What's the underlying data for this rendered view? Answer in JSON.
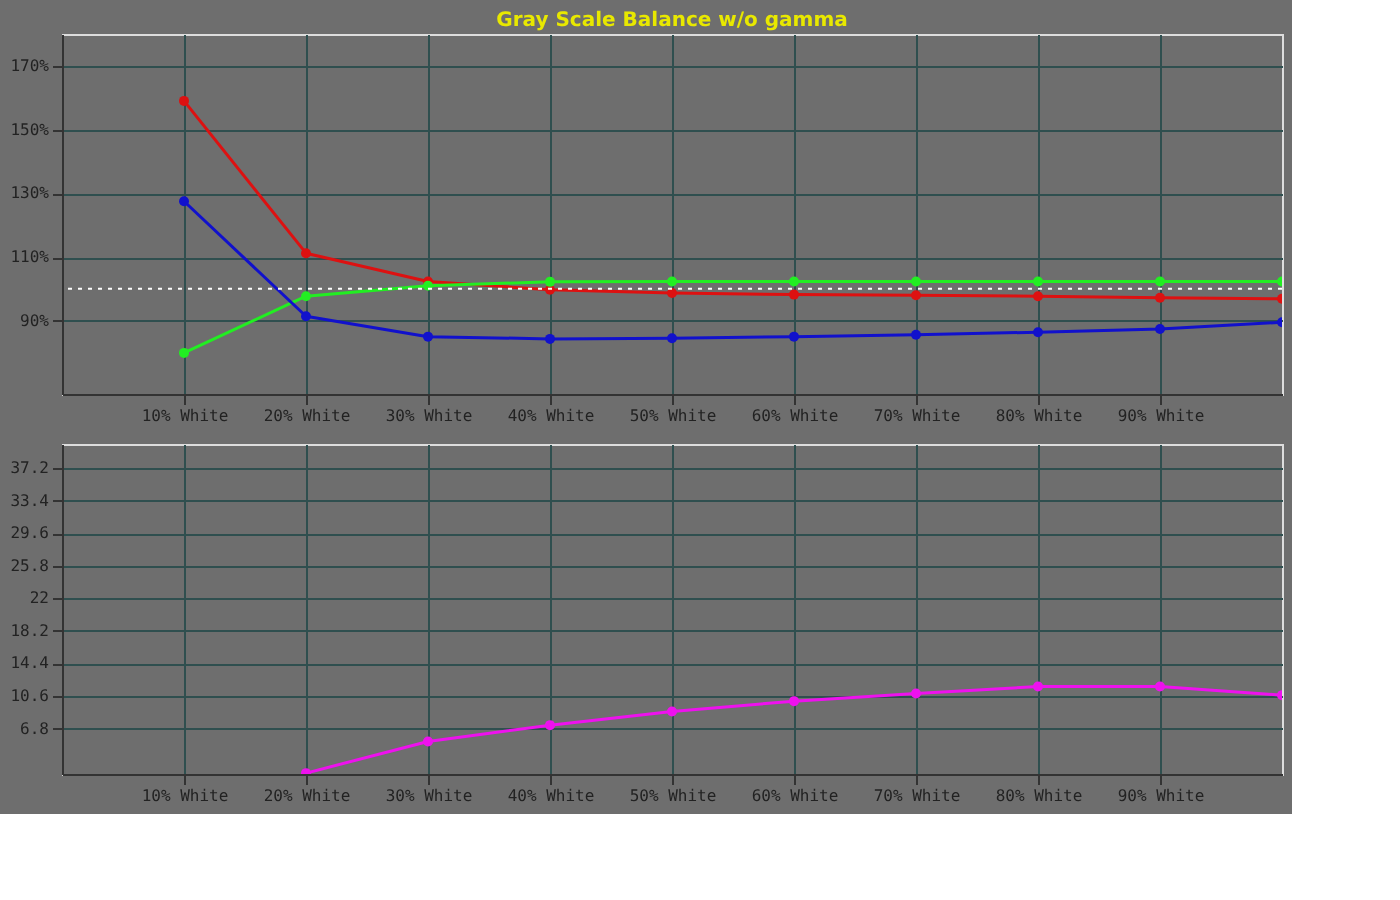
{
  "chart_data": [
    {
      "type": "line",
      "title": "Gray Scale Balance w/o gamma",
      "x": [
        10,
        20,
        30,
        40,
        50,
        60,
        70,
        80,
        90,
        100
      ],
      "series": [
        {
          "color": "#dd1111",
          "values": [
            159.0,
            111.2,
            102.3,
            99.7,
            98.7,
            98.2,
            98.0,
            97.7,
            97.2,
            96.9
          ]
        },
        {
          "color": "#22ee22",
          "values": [
            79.9,
            97.7,
            101.0,
            102.2,
            102.3,
            102.3,
            102.3,
            102.3,
            102.3,
            102.3
          ]
        },
        {
          "color": "#1111cc",
          "values": [
            127.5,
            91.4,
            85.0,
            84.3,
            84.5,
            85.0,
            85.6,
            86.4,
            87.4,
            89.5
          ]
        }
      ],
      "xlim": [
        0,
        100
      ],
      "xticks": [
        {
          "value": 10,
          "label": "10% White"
        },
        {
          "value": 20,
          "label": "20% White"
        },
        {
          "value": 30,
          "label": "30% White"
        },
        {
          "value": 40,
          "label": "40% White"
        },
        {
          "value": 50,
          "label": "50% White"
        },
        {
          "value": 60,
          "label": "60% White"
        },
        {
          "value": 70,
          "label": "70% White"
        },
        {
          "value": 80,
          "label": "80% White"
        },
        {
          "value": 90,
          "label": "90% White"
        }
      ],
      "ylim": [
        67,
        180
      ],
      "yticks": [
        {
          "value": 90,
          "label": "90%"
        },
        {
          "value": 110,
          "label": "110%"
        },
        {
          "value": 130,
          "label": "130%"
        },
        {
          "value": 150,
          "label": "150%"
        },
        {
          "value": 170,
          "label": "170%"
        }
      ],
      "ref_lines": [
        {
          "axis": "y",
          "value": 100,
          "color": "#ffffff",
          "line_style": "dotted"
        }
      ],
      "grid": true,
      "marker": "circle",
      "line_style": "solid"
    },
    {
      "type": "line",
      "x": [
        20,
        30,
        40,
        50,
        60,
        70,
        80,
        90,
        100
      ],
      "series": [
        {
          "color": "#ee11ee",
          "values": [
            1.6,
            5.3,
            7.2,
            8.8,
            10.0,
            10.9,
            11.7,
            11.7,
            10.7
          ]
        }
      ],
      "xlim": [
        0,
        100
      ],
      "xticks": [
        {
          "value": 10,
          "label": "10% White"
        },
        {
          "value": 20,
          "label": "20% White"
        },
        {
          "value": 30,
          "label": "30% White"
        },
        {
          "value": 40,
          "label": "40% White"
        },
        {
          "value": 50,
          "label": "50% White"
        },
        {
          "value": 60,
          "label": "60% White"
        },
        {
          "value": 70,
          "label": "70% White"
        },
        {
          "value": 80,
          "label": "80% White"
        },
        {
          "value": 90,
          "label": "90% White"
        }
      ],
      "ylim": [
        1.5,
        40
      ],
      "yticks": [
        6.8,
        10.6,
        14.4,
        18.2,
        22,
        25.8,
        29.6,
        33.4,
        37.2
      ],
      "grid": true,
      "marker": "circle",
      "line_style": "solid"
    }
  ]
}
